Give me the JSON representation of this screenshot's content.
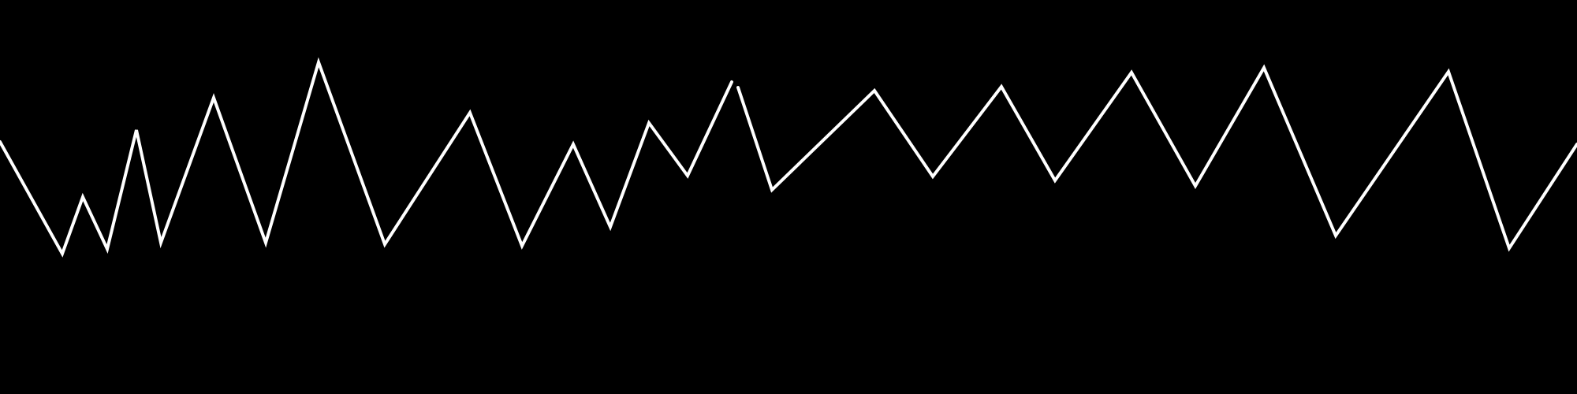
{
  "scene": {
    "background_color": "#000000",
    "stroke_color": "#ffffff",
    "shape": "zigzag-polyline"
  }
}
